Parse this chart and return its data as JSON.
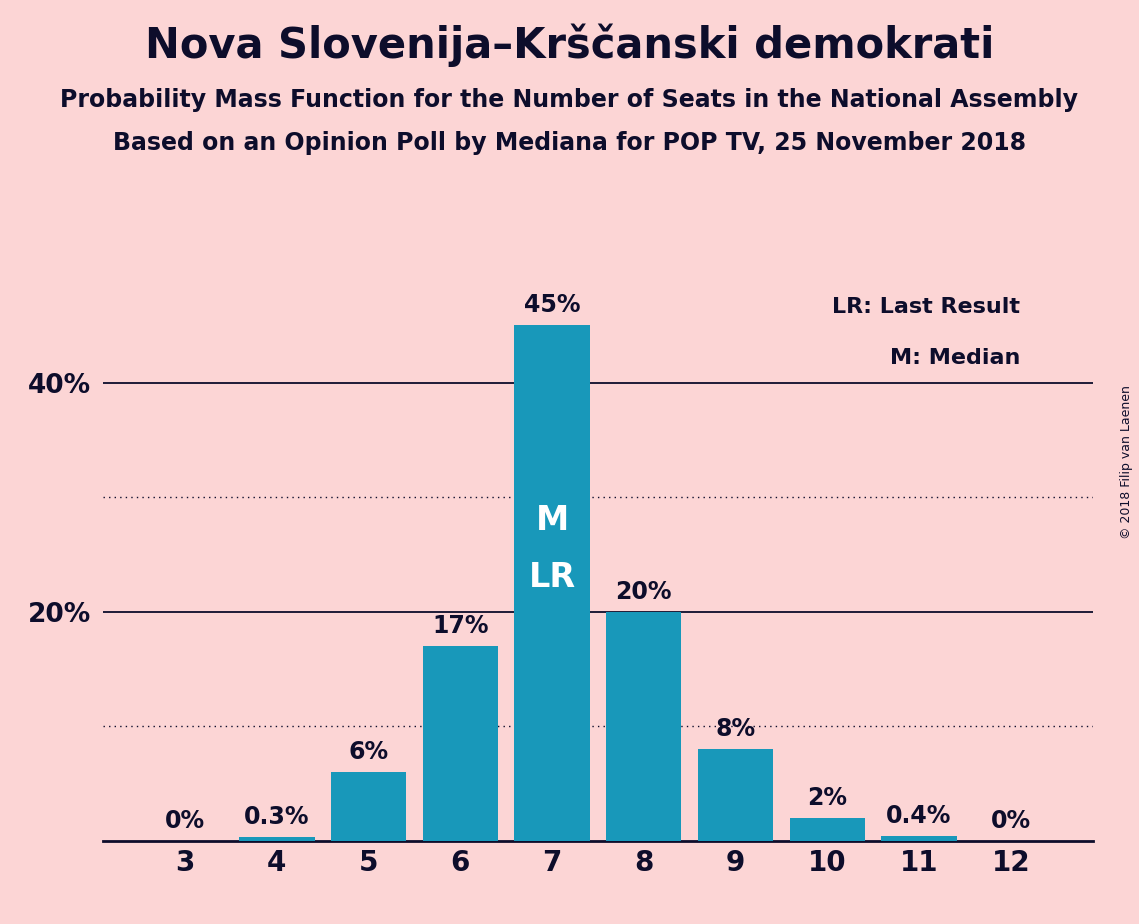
{
  "title": "Nova Slovenija–Krščanski demokrati",
  "subtitle1": "Probability Mass Function for the Number of Seats in the National Assembly",
  "subtitle2": "Based on an Opinion Poll by Mediana for POP TV, 25 November 2018",
  "copyright": "© 2018 Filip van Laenen",
  "categories": [
    3,
    4,
    5,
    6,
    7,
    8,
    9,
    10,
    11,
    12
  ],
  "values": [
    0.0,
    0.3,
    6.0,
    17.0,
    45.0,
    20.0,
    8.0,
    2.0,
    0.4,
    0.0
  ],
  "bar_color": "#1898ba",
  "background_color": "#fcd5d5",
  "label_color": "#0d0d2b",
  "bar_label_color_dark": "#0d0d2b",
  "bar_label_color_white": "#ffffff",
  "median_seat": 7,
  "last_result_seat": 7,
  "legend_text1": "LR: Last Result",
  "legend_text2": "M: Median",
  "ylim": [
    0,
    50
  ],
  "solid_gridlines": [
    20,
    40
  ],
  "dotted_gridlines": [
    10,
    30
  ],
  "value_labels": [
    "0%",
    "0.3%",
    "6%",
    "17%",
    "45%",
    "20%",
    "8%",
    "2%",
    "0.4%",
    "0%"
  ],
  "title_fontsize": 30,
  "subtitle_fontsize": 17,
  "bar_label_fontsize": 17,
  "tick_fontsize": 20,
  "ytick_fontsize": 19,
  "legend_fontsize": 16
}
